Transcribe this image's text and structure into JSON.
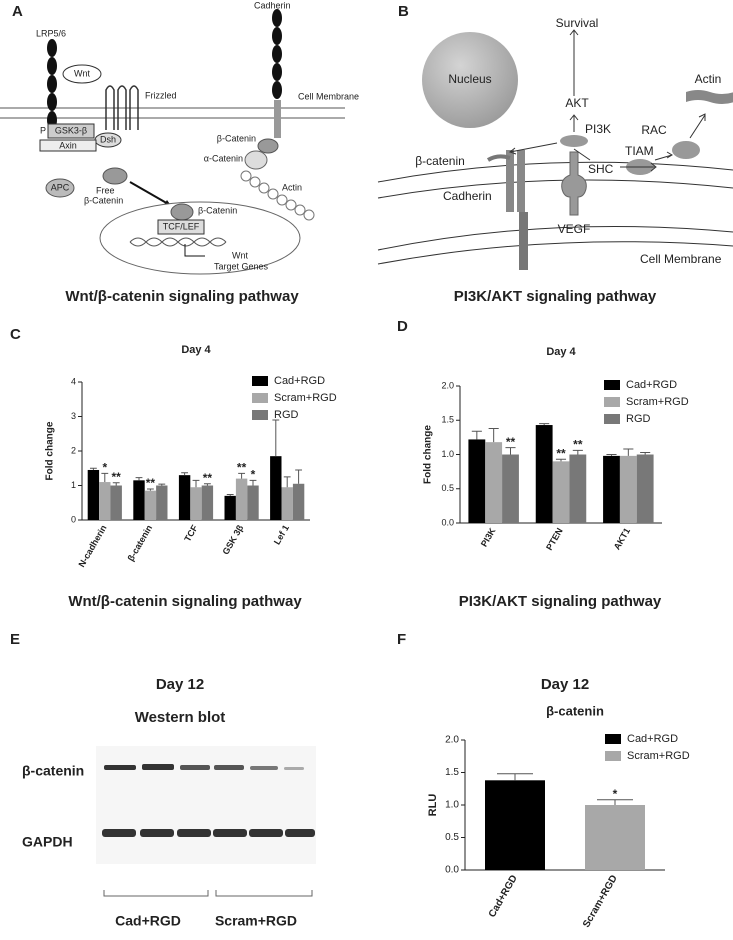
{
  "panel_labels": [
    "A",
    "B",
    "C",
    "D",
    "E",
    "F"
  ],
  "diagram_a": {
    "labels": [
      "LRP5/6",
      "Wnt",
      "Frizzled",
      "Cadherin",
      "Cell Membrane",
      "P",
      "GSK3-β",
      "Dsh",
      "Axin",
      "β-Catenin",
      "α-Catenin",
      "APC",
      "Free",
      "β-Catenin",
      "Actin",
      "β-Catenin",
      "TCF/LEF",
      "Wnt",
      "Target Genes"
    ],
    "caption": "Wnt/β-catenin signaling pathway"
  },
  "diagram_b": {
    "labels": [
      "Survival",
      "AKT",
      "Nucleus",
      "Actin",
      "PI3K",
      "RAC",
      "β-catenin",
      "SHC",
      "TIAM",
      "Cadherin",
      "VEGF",
      "Cell Membrane"
    ],
    "caption": "PI3K/AKT signaling pathway"
  },
  "western_blot": {
    "title": "Day 12",
    "subtitle": "Western blot",
    "rows": [
      "β-catenin",
      "GAPDH"
    ],
    "groups": [
      "Cad+RGD",
      "Scram+RGD"
    ]
  },
  "chart_data": [
    {
      "type": "bar",
      "title": "Day 4",
      "y_label": "Fold change",
      "caption": "Wnt/β-catenin signaling pathway",
      "categories": [
        "N-cadherin",
        "β-catenin",
        "TCF",
        "GSK 3β",
        "Lef 1"
      ],
      "series": [
        {
          "name": "Cad+RGD",
          "color": "#000000",
          "values": [
            1.45,
            1.15,
            1.3,
            0.7,
            1.85
          ],
          "errors": [
            0.05,
            0.08,
            0.07,
            0.04,
            1.05
          ],
          "annotations": [
            null,
            null,
            null,
            null,
            null
          ]
        },
        {
          "name": "Scram+RGD",
          "color": "#a8a8a8",
          "values": [
            1.1,
            0.85,
            0.95,
            1.2,
            0.95
          ],
          "errors": [
            0.25,
            0.05,
            0.2,
            0.15,
            0.3
          ],
          "annotations": [
            "*",
            "**",
            null,
            "**",
            null
          ]
        },
        {
          "name": "RGD",
          "color": "#787878",
          "values": [
            1.0,
            1.0,
            1.0,
            1.0,
            1.05
          ],
          "errors": [
            0.08,
            0.04,
            0.05,
            0.15,
            0.4
          ],
          "annotations": [
            "**",
            null,
            "**",
            "*",
            null
          ]
        }
      ],
      "ylim": [
        0,
        4
      ],
      "yticks": [
        0,
        1,
        2,
        3,
        4
      ],
      "legend": "upper right"
    },
    {
      "type": "bar",
      "title": "Day 4",
      "y_label": "Fold change",
      "caption": "PI3K/AKT signaling pathway",
      "categories": [
        "PI3K",
        "PTEN",
        "AKT1"
      ],
      "series": [
        {
          "name": "Cad+RGD",
          "color": "#000000",
          "values": [
            1.22,
            1.43,
            0.98
          ],
          "errors": [
            0.12,
            0.02,
            0.02
          ],
          "annotations": [
            null,
            null,
            null
          ]
        },
        {
          "name": "Scram+RGD",
          "color": "#a8a8a8",
          "values": [
            1.18,
            0.9,
            0.98
          ],
          "errors": [
            0.2,
            0.03,
            0.1
          ],
          "annotations": [
            null,
            "**",
            null
          ]
        },
        {
          "name": "RGD",
          "color": "#787878",
          "values": [
            1.0,
            1.0,
            1.0
          ],
          "errors": [
            0.1,
            0.06,
            0.03
          ],
          "annotations": [
            "**",
            "**",
            null
          ]
        }
      ],
      "ylim": [
        0,
        2
      ],
      "yticks": [
        {
          "value": 0,
          "label": "0.0"
        },
        {
          "value": 0.5,
          "label": "0.5"
        },
        {
          "value": 1,
          "label": "1.0"
        },
        {
          "value": 1.5,
          "label": "1.5"
        },
        {
          "value": 2,
          "label": "2.0"
        }
      ],
      "legend": "upper right"
    },
    {
      "type": "bar",
      "title": "Day 12",
      "subtitle": "β-catenin",
      "y_label": "RLU",
      "categories": [
        "Cad+RGD",
        "Scram+RGD"
      ],
      "values": [
        1.38,
        1.0
      ],
      "errors": [
        0.1,
        0.08
      ],
      "annotations": [
        null,
        "*"
      ],
      "colors": [
        "#000000",
        "#a8a8a8"
      ],
      "ylim": [
        0,
        2
      ],
      "yticks": [
        {
          "value": 0,
          "label": "0.0"
        },
        {
          "value": 0.5,
          "label": "0.5"
        },
        {
          "value": 1,
          "label": "1.0"
        },
        {
          "value": 1.5,
          "label": "1.5"
        },
        {
          "value": 2,
          "label": "2.0"
        }
      ],
      "legend": "upper right"
    }
  ]
}
